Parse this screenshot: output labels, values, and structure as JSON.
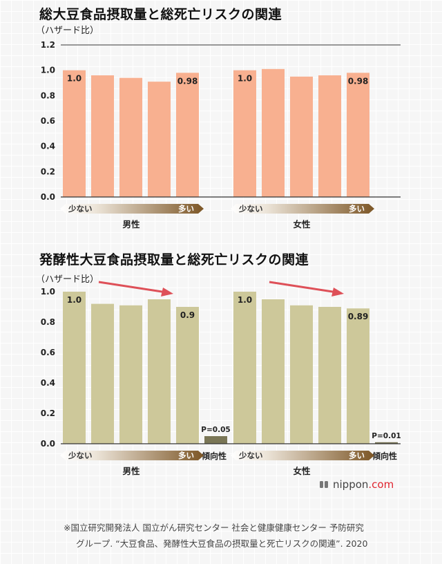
{
  "chart_data": [
    {
      "type": "bar",
      "title": "総大豆食品摂取量と総死亡リスクの関連",
      "ylabel": "（ハザード比）",
      "ylim": [
        0,
        1.2
      ],
      "yticks": [
        "0.0",
        "0.2",
        "0.4",
        "0.6",
        "0.8",
        "1.0",
        "1.2"
      ],
      "bar_color": "#f8b090",
      "scale_low": "少ない",
      "scale_high": "多い",
      "groups": [
        {
          "name": "男性",
          "values": [
            1.0,
            0.96,
            0.94,
            0.91,
            0.98
          ],
          "labels": [
            "1.0",
            "",
            "",
            "",
            "0.98"
          ]
        },
        {
          "name": "女性",
          "values": [
            1.0,
            1.01,
            0.95,
            0.96,
            0.98
          ],
          "labels": [
            "1.0",
            "",
            "",
            "",
            "0.98"
          ]
        }
      ]
    },
    {
      "type": "bar",
      "title": "発酵性大豆食品摂取量と総死亡リスクの関連",
      "ylabel": "（ハザード比）",
      "ylim": [
        0,
        1.0
      ],
      "yticks": [
        "0.0",
        "0.2",
        "0.4",
        "0.6",
        "0.8",
        "1.0"
      ],
      "bar_color": "#cdc89a",
      "trend_color": "#7a7656",
      "trend_label": "傾向性",
      "arrow_color": "#de5058",
      "scale_low": "少ない",
      "scale_high": "多い",
      "groups": [
        {
          "name": "男性",
          "values": [
            1.0,
            0.92,
            0.91,
            0.95,
            0.9
          ],
          "labels": [
            "1.0",
            "",
            "",
            "",
            "0.9"
          ],
          "p_label": "P=0.05",
          "p_value": 0.05
        },
        {
          "name": "女性",
          "values": [
            1.0,
            0.95,
            0.91,
            0.9,
            0.89
          ],
          "labels": [
            "1.0",
            "",
            "",
            "",
            "0.89"
          ],
          "p_label": "P=0.01",
          "p_value": 0.01
        }
      ]
    }
  ],
  "logo": {
    "name": "nippon",
    "suffix": ".com"
  },
  "note": {
    "line1": "※国立研究開発法人  国立がん研究センター  社会と健康健康センター  予防研究",
    "line2": "グループ.  “大豆食品、発酵性大豆食品の摂取量と死亡リスクの関連”. 2020"
  }
}
